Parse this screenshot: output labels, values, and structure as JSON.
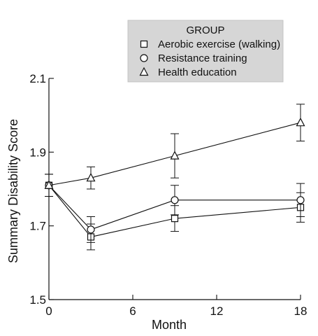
{
  "chart_data": {
    "type": "line",
    "title": "",
    "xlabel": "Month",
    "ylabel": "Summary Disability Score",
    "xlim": [
      0,
      18
    ],
    "ylim": [
      1.5,
      2.1
    ],
    "xticks": [
      0,
      6,
      12,
      18
    ],
    "xtick_labels": [
      "0",
      "6",
      "12",
      "18"
    ],
    "yticks": [
      1.5,
      1.7,
      1.9,
      2.1
    ],
    "ytick_labels": [
      "1.5",
      "1.7",
      "1.9",
      "2.1"
    ],
    "grid": false,
    "legend": {
      "title": "GROUP",
      "placement": "top-right",
      "background": "#d6d6d6"
    },
    "series": [
      {
        "name": "Aerobic exercise (walking)",
        "marker": "square",
        "color": "#111111",
        "x": [
          0,
          3,
          9,
          18
        ],
        "y": [
          1.81,
          1.67,
          1.72,
          1.75
        ],
        "error": [
          0.03,
          0.035,
          0.035,
          0.04
        ]
      },
      {
        "name": "Resistance training",
        "marker": "circle",
        "color": "#111111",
        "x": [
          0,
          3,
          9,
          18
        ],
        "y": [
          1.81,
          1.69,
          1.77,
          1.77
        ],
        "error": [
          0.03,
          0.035,
          0.04,
          0.045
        ]
      },
      {
        "name": "Health education",
        "marker": "triangle",
        "color": "#111111",
        "x": [
          0,
          3,
          9,
          18
        ],
        "y": [
          1.81,
          1.83,
          1.89,
          1.98
        ],
        "error": [
          0.03,
          0.03,
          0.06,
          0.05
        ]
      }
    ]
  }
}
